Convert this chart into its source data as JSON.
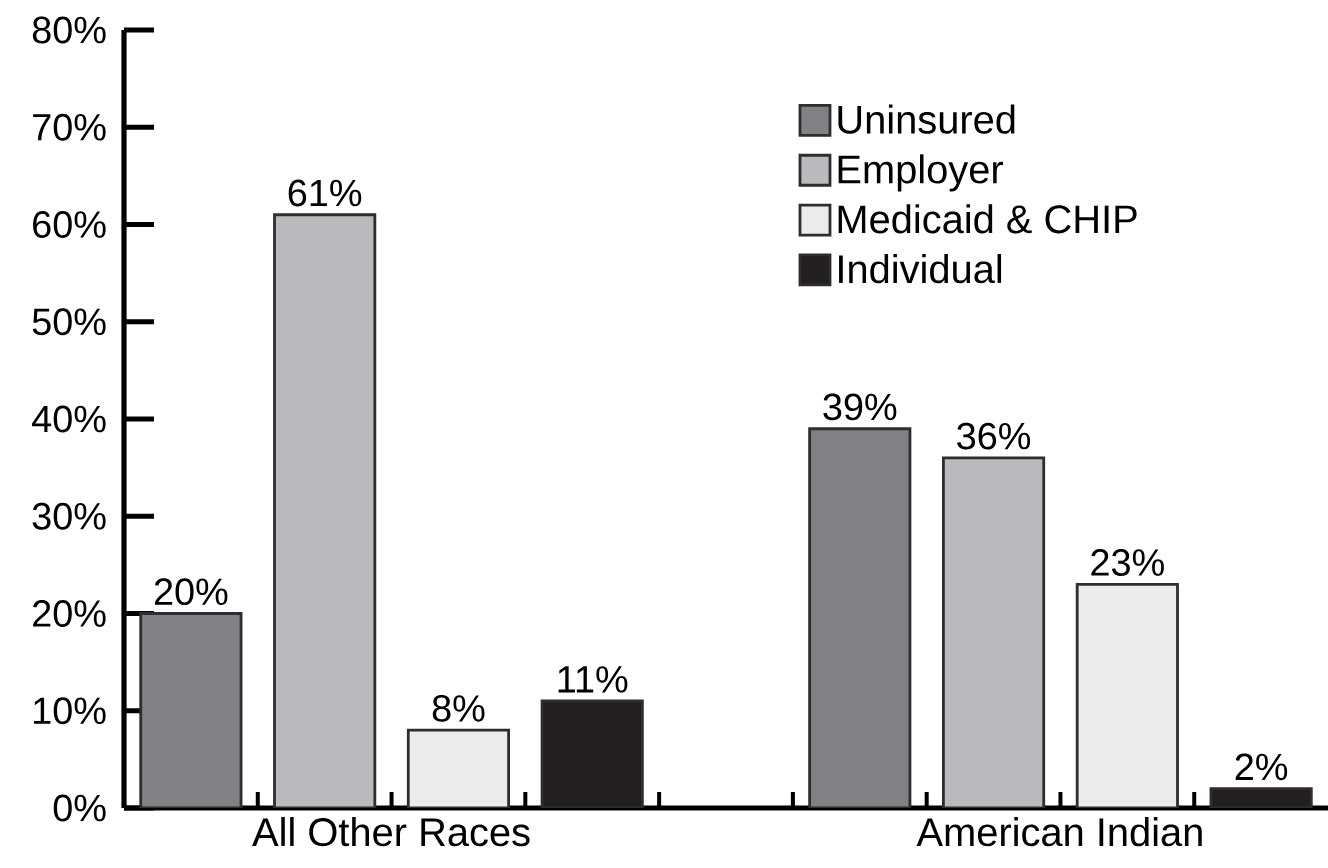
{
  "chart_data": {
    "type": "bar",
    "categories": [
      "All Other Races",
      "American Indian"
    ],
    "series": [
      {
        "name": "Uninsured",
        "color": "#808185",
        "values": [
          20,
          39
        ],
        "value_labels": [
          "20%",
          "39%"
        ]
      },
      {
        "name": "Employer",
        "color": "#b9babd",
        "values": [
          61,
          36
        ],
        "value_labels": [
          "61%",
          "36%"
        ]
      },
      {
        "name": "Medicaid & CHIP",
        "color": "#ebebeb",
        "values": [
          8,
          23
        ],
        "value_labels": [
          "8%",
          "23%"
        ]
      },
      {
        "name": "Individual",
        "color": "#231f20",
        "values": [
          11,
          2
        ],
        "value_labels": [
          "11%",
          "2%"
        ]
      }
    ],
    "ylim": [
      0,
      80
    ],
    "yticks": [
      {
        "value": 0,
        "label": "0%"
      },
      {
        "value": 10,
        "label": "10%"
      },
      {
        "value": 20,
        "label": "20%"
      },
      {
        "value": 30,
        "label": "30%"
      },
      {
        "value": 40,
        "label": "40%"
      },
      {
        "value": 50,
        "label": "50%"
      },
      {
        "value": 60,
        "label": "60%"
      },
      {
        "value": 70,
        "label": "70%"
      },
      {
        "value": 80,
        "label": "80%"
      }
    ],
    "legend": "top right"
  }
}
